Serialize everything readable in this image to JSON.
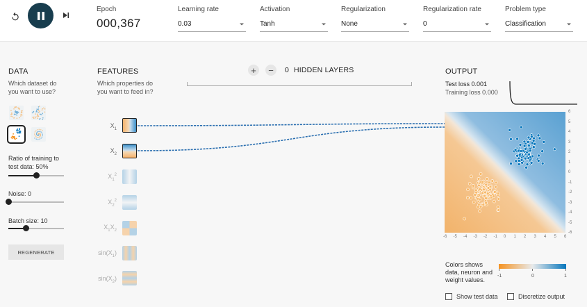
{
  "controls": {
    "reset_icon": "reset-icon",
    "pause_icon": "pause-icon",
    "step_icon": "step-forward-icon"
  },
  "epoch": {
    "label": "Epoch",
    "value": "000,367"
  },
  "learning_rate": {
    "label": "Learning rate",
    "value": "0.03"
  },
  "activation": {
    "label": "Activation",
    "value": "Tanh"
  },
  "regularization": {
    "label": "Regularization",
    "value": "None"
  },
  "regularization_rate": {
    "label": "Regularization rate",
    "value": "0"
  },
  "problem_type": {
    "label": "Problem type",
    "value": "Classification"
  },
  "data": {
    "title": "DATA",
    "subtitle_line1": "Which dataset do",
    "subtitle_line2": "you want to use?",
    "datasets": [
      "circle",
      "xor",
      "gaussian",
      "spiral"
    ],
    "selected_dataset": "gaussian",
    "ratio_label_line1": "Ratio of training to",
    "ratio_label_line2": "test data:  50%",
    "ratio_value": 50,
    "noise_label": "Noise:  0",
    "noise_value": 0,
    "batch_label": "Batch size:  10",
    "batch_value": 10,
    "batch_max": 30,
    "regenerate_label": "REGENERATE"
  },
  "features": {
    "title": "FEATURES",
    "subtitle_line1": "Which properties do",
    "subtitle_line2": "you want to feed in?",
    "items": [
      {
        "base": "X",
        "sub": "1",
        "sup": "",
        "active": true
      },
      {
        "base": "X",
        "sub": "2",
        "sup": "",
        "active": true
      },
      {
        "base": "X",
        "sub": "1",
        "sup": "2",
        "active": false
      },
      {
        "base": "X",
        "sub": "2",
        "sup": "2",
        "active": false
      },
      {
        "base": "X1X2",
        "sub": "",
        "sup": "",
        "active": false
      },
      {
        "base": "sin(X1)",
        "sub": "",
        "sup": "",
        "active": false
      },
      {
        "base": "sin(X2)",
        "sub": "",
        "sup": "",
        "active": false
      }
    ]
  },
  "hidden_layers": {
    "plus_label": "+",
    "minus_label": "−",
    "count": "0",
    "label": "HIDDEN LAYERS"
  },
  "output": {
    "title": "OUTPUT",
    "test_loss": "Test loss 0.001",
    "training_loss": "Training loss 0.000",
    "x_ticks": [
      "-6",
      "-5",
      "-4",
      "-3",
      "-2",
      "-1",
      "0",
      "1",
      "2",
      "3",
      "4",
      "5",
      "6"
    ],
    "y_ticks": [
      "6",
      "5",
      "4",
      "3",
      "2",
      "1",
      "0",
      "-1",
      "-2",
      "-3",
      "-4",
      "-5",
      "-6"
    ]
  },
  "legend": {
    "line1": "Colors shows",
    "line2": "data, neuron and",
    "line3": "weight values.",
    "min": "-1",
    "mid": "0",
    "max": "1",
    "neg_color": "#f59322",
    "pos_color": "#0877bd"
  },
  "checkboxes": {
    "show_test_data": "Show test data",
    "discretize_output": "Discretize output"
  }
}
